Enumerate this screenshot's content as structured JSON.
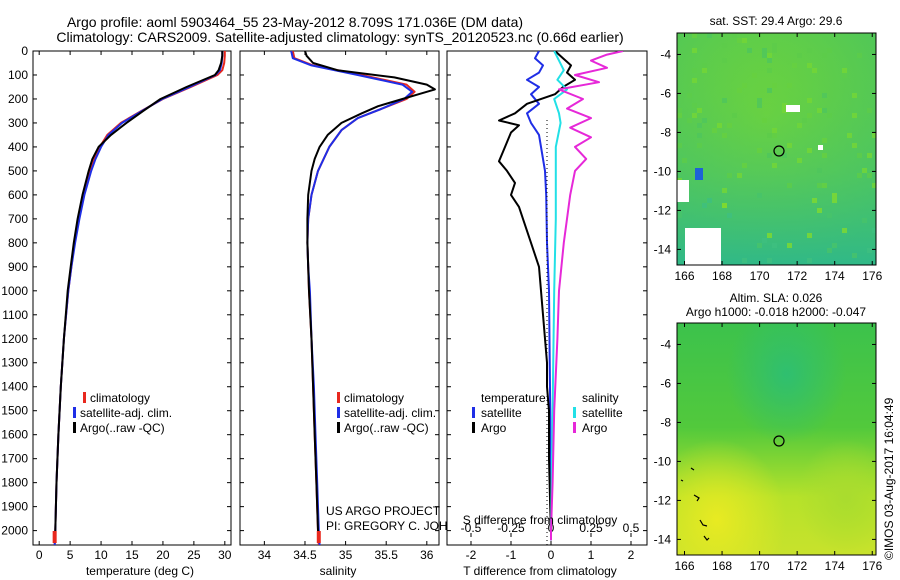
{
  "title": {
    "line1": "Argo profile: aoml 5903464_55 23-May-2012 8.709S 171.036E (DM data)",
    "line2": "Climatology: CARS2009. Satellite-adjusted climatology: synTS_20120523.nc (0.66d earlier)"
  },
  "credits": {
    "project": "US ARGO PROJECT",
    "pi": "PI: GREGORY C. JOHNSON",
    "imos": "©IMOS 03-Aug-2017 16:04:49"
  },
  "colors": {
    "climatology": "#e8281e",
    "satellite": "#1f2ee6",
    "argo": "#000000",
    "sal_satellite": "#22e0e6",
    "sal_argo": "#e628d8"
  },
  "depth_ticks": [
    "0",
    "100",
    "200",
    "300",
    "400",
    "500",
    "600",
    "700",
    "800",
    "900",
    "1000",
    "1100",
    "1200",
    "1300",
    "1400",
    "1500",
    "1600",
    "1700",
    "1800",
    "1900",
    "2000"
  ],
  "chart_data": [
    {
      "type": "line",
      "name": "temperature",
      "xlabel": "temperature (deg C)",
      "ylabel": "",
      "xlim": [
        -1,
        31
      ],
      "ylim": [
        2060,
        0
      ],
      "xticks": [
        "0",
        "5",
        "10",
        "15",
        "20",
        "25",
        "30"
      ],
      "legend": [
        "climatology",
        "satellite-adj. clim.",
        "Argo(..raw -QC)"
      ],
      "series": [
        {
          "name": "climatology",
          "color_key": "climatology",
          "depth": [
            0,
            20,
            50,
            80,
            100,
            150,
            200,
            250,
            300,
            350,
            400,
            450,
            500,
            600,
            700,
            800,
            900,
            1000,
            1200,
            1400,
            1600,
            1800,
            2000,
            2060
          ],
          "values": [
            30,
            30,
            29.9,
            29.6,
            28.8,
            24.5,
            20.0,
            16.5,
            13.2,
            11.0,
            9.8,
            8.9,
            8.3,
            7.2,
            6.4,
            5.7,
            5.2,
            4.7,
            4.0,
            3.5,
            3.1,
            2.8,
            2.6,
            2.5
          ]
        },
        {
          "name": "satellite-adj. clim.",
          "color_key": "satellite",
          "depth": [
            0,
            20,
            50,
            80,
            100,
            150,
            200,
            250,
            300,
            350,
            400,
            450,
            500,
            600,
            700,
            800,
            900,
            1000,
            1200,
            1400,
            1600,
            1800,
            2000,
            2060
          ],
          "values": [
            29.6,
            29.6,
            29.5,
            29.2,
            28.5,
            24.3,
            19.9,
            16.6,
            13.4,
            11.2,
            10.0,
            9.1,
            8.4,
            7.3,
            6.5,
            5.8,
            5.2,
            4.7,
            4.0,
            3.5,
            3.1,
            2.8,
            2.6,
            2.5
          ]
        },
        {
          "name": "Argo(..raw -QC)",
          "color_key": "argo",
          "depth": [
            0,
            20,
            50,
            80,
            100,
            150,
            200,
            250,
            300,
            350,
            400,
            450,
            500,
            600,
            700,
            800,
            900,
            1000,
            1200,
            1400,
            1600,
            1800,
            2000,
            2040
          ],
          "values": [
            29.6,
            29.6,
            29.4,
            29.0,
            28.4,
            23.8,
            19.6,
            16.8,
            14.1,
            11.6,
            9.6,
            8.6,
            8.0,
            7.0,
            6.2,
            5.6,
            5.1,
            4.6,
            4.0,
            3.5,
            3.1,
            2.8,
            2.6,
            2.5
          ]
        }
      ]
    },
    {
      "type": "line",
      "name": "salinity",
      "xlabel": "salinity",
      "ylabel": "",
      "xlim": [
        33.7,
        36.15
      ],
      "ylim": [
        2060,
        0
      ],
      "xticks": [
        "34",
        "34.5",
        "35",
        "35.5",
        "36"
      ],
      "legend": [
        "climatology",
        "satellite-adj. clim.",
        "Argo(..raw -QC)"
      ],
      "series": [
        {
          "name": "climatology",
          "color_key": "climatology",
          "depth": [
            0,
            30,
            60,
            100,
            140,
            170,
            200,
            240,
            280,
            330,
            400,
            500,
            600,
            700,
            800,
            900,
            1000,
            1200,
            1400,
            1600,
            1800,
            2000,
            2060
          ],
          "values": [
            34.35,
            34.37,
            34.6,
            35.2,
            35.75,
            35.85,
            35.75,
            35.45,
            35.15,
            34.95,
            34.8,
            34.66,
            34.58,
            34.54,
            34.53,
            34.54,
            34.55,
            34.58,
            34.6,
            34.62,
            34.64,
            34.66,
            34.67
          ]
        },
        {
          "name": "satellite-adj. clim.",
          "color_key": "satellite",
          "depth": [
            0,
            30,
            60,
            100,
            140,
            170,
            200,
            240,
            280,
            330,
            400,
            500,
            600,
            700,
            800,
            900,
            1000,
            1200,
            1400,
            1600,
            1800,
            2000,
            2060
          ],
          "values": [
            34.33,
            34.35,
            34.58,
            35.15,
            35.7,
            35.82,
            35.72,
            35.45,
            35.15,
            34.95,
            34.8,
            34.66,
            34.58,
            34.54,
            34.53,
            34.54,
            34.56,
            34.58,
            34.61,
            34.63,
            34.65,
            34.67,
            34.68
          ]
        },
        {
          "name": "Argo(..raw -QC)",
          "color_key": "argo",
          "depth": [
            0,
            20,
            50,
            80,
            110,
            140,
            160,
            180,
            200,
            230,
            260,
            300,
            350,
            400,
            450,
            500,
            600,
            700,
            800,
            900,
            1000,
            1200,
            1400,
            1600,
            1800,
            2000,
            2040
          ],
          "values": [
            34.5,
            34.52,
            34.6,
            34.9,
            35.6,
            36.0,
            36.1,
            35.9,
            35.7,
            35.4,
            35.2,
            34.95,
            34.78,
            34.68,
            34.62,
            34.58,
            34.54,
            34.53,
            34.53,
            34.54,
            34.55,
            34.58,
            34.6,
            34.62,
            34.64,
            34.66,
            34.67
          ]
        }
      ]
    },
    {
      "type": "line",
      "name": "difference from climatology",
      "xlabel": "T difference from climatology",
      "xlabel_top": "S difference from climatology",
      "xlim": [
        -2.6,
        2.4
      ],
      "ylim": [
        2060,
        0
      ],
      "xticks_T": [
        "-2",
        "-1",
        "0",
        "1",
        "2"
      ],
      "xticks_S": [
        "-0.5",
        "-0.25",
        "0",
        "0.25",
        "0.5"
      ],
      "legend_titles": [
        "temperature",
        "salinity"
      ],
      "legend": [
        "satellite",
        "Argo",
        "satellite",
        "Argo"
      ],
      "series": [
        {
          "name": "temperature satellite",
          "color_key": "satellite",
          "depth": [
            0,
            30,
            60,
            90,
            120,
            150,
            180,
            220,
            260,
            300,
            350,
            400,
            500,
            600,
            800,
            1000,
            1500,
            2000,
            2040
          ],
          "values": [
            -0.3,
            -0.4,
            -0.2,
            -0.3,
            -0.6,
            -0.3,
            -0.5,
            -0.3,
            -0.6,
            -0.5,
            -0.3,
            -0.25,
            -0.15,
            -0.12,
            -0.1,
            -0.05,
            -0.02,
            0,
            0
          ]
        },
        {
          "name": "temperature Argo",
          "color_key": "argo",
          "depth": [
            0,
            30,
            60,
            90,
            120,
            150,
            180,
            220,
            260,
            290,
            310,
            340,
            380,
            420,
            460,
            500,
            550,
            600,
            650,
            700,
            800,
            900,
            1000,
            1100,
            1200,
            1300,
            1400,
            1500,
            1700,
            1900,
            2000,
            2040
          ],
          "values": [
            0.1,
            0.3,
            0.5,
            0.4,
            0.6,
            0.3,
            0.1,
            -0.6,
            -0.9,
            -1.3,
            -0.8,
            -1.0,
            -1.1,
            -1.2,
            -1.3,
            -1.1,
            -0.9,
            -1.0,
            -0.8,
            -0.7,
            -0.5,
            -0.3,
            -0.25,
            -0.2,
            -0.15,
            -0.1,
            -0.1,
            -0.05,
            -0.05,
            -0.02,
            0,
            0
          ]
        },
        {
          "name": "salinity satellite",
          "color_key": "sal_satellite",
          "depth": [
            0,
            40,
            80,
            120,
            160,
            200,
            260,
            300,
            400,
            500,
            700,
            1000,
            1500,
            2000,
            2040
          ],
          "values": [
            0.02,
            0.05,
            0.08,
            0.04,
            0.1,
            0.02,
            0.05,
            0.06,
            0.03,
            0.03,
            0.03,
            0.02,
            0.01,
            0.0,
            0.0
          ]
        },
        {
          "name": "salinity Argo",
          "color_key": "sal_argo",
          "depth": [
            0,
            15,
            40,
            70,
            100,
            130,
            160,
            200,
            240,
            280,
            320,
            360,
            400,
            450,
            500,
            600,
            700,
            800,
            1000,
            1200,
            1500,
            1800,
            2000,
            2040
          ],
          "values": [
            0.45,
            0.35,
            0.25,
            0.35,
            0.15,
            0.3,
            0.05,
            0.2,
            0.1,
            0.25,
            0.12,
            0.25,
            0.15,
            0.22,
            0.15,
            0.12,
            0.1,
            0.08,
            0.05,
            0.04,
            0.02,
            0.01,
            0.0,
            0.0
          ]
        }
      ]
    },
    {
      "type": "heatmap",
      "name": "sst map",
      "title": "sat. SST: 29.4 Argo: 29.6",
      "xticks": [
        "166",
        "168",
        "170",
        "172",
        "174",
        "176"
      ],
      "yticks": [
        "-4",
        "-6",
        "-8",
        "-10",
        "-12",
        "-14"
      ],
      "xlim": [
        165.6,
        176.2
      ],
      "ylim": [
        -14.8,
        -2.9
      ],
      "marker": {
        "lon": 171.036,
        "lat": -8.709
      }
    },
    {
      "type": "heatmap",
      "name": "sla map",
      "title_line1": "Altim. SLA: 0.026",
      "title_line2": "Argo h1000: -0.018 h2000: -0.047",
      "xticks": [
        "166",
        "168",
        "170",
        "172",
        "174",
        "176"
      ],
      "yticks": [
        "-4",
        "-6",
        "-8",
        "-10",
        "-12",
        "-14"
      ],
      "xlim": [
        165.6,
        176.2
      ],
      "ylim": [
        -14.8,
        -2.9
      ],
      "marker": {
        "lon": 171.036,
        "lat": -8.709
      }
    }
  ]
}
